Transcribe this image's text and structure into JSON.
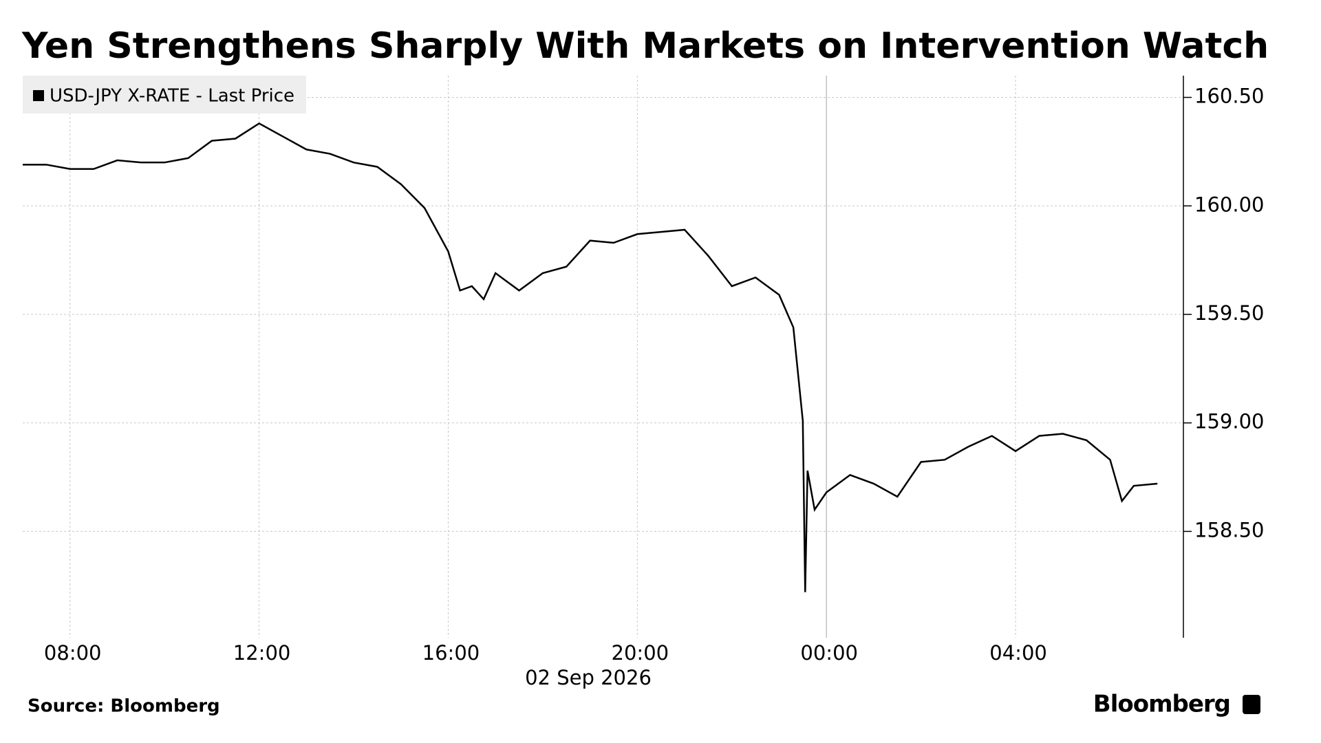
{
  "chart_data": {
    "type": "line",
    "title": "Yen Strengthens Sharply With Markets on Intervention Watch",
    "xlabel": "02 Sep 2026",
    "source": "Source: Bloomberg",
    "brand": "Bloomberg",
    "grid": true,
    "legend": "top-left",
    "x": [
      7,
      7.5,
      8,
      8.5,
      9,
      9.5,
      10,
      10.5,
      11,
      11.5,
      12,
      12.5,
      13,
      13.5,
      14,
      14.5,
      15,
      15.5,
      16,
      16.25,
      16.5,
      16.75,
      17,
      17.5,
      18,
      18.5,
      19,
      19.5,
      20,
      20.5,
      21,
      21.5,
      22,
      22.5,
      23,
      23.3,
      23.5,
      23.55,
      23.6,
      23.75,
      24,
      24.5,
      25,
      25.5,
      26,
      26.5,
      27,
      27.5,
      28,
      28.5,
      29,
      29.5,
      30,
      30.25,
      30.5,
      31
    ],
    "series": [
      {
        "name": "USD-JPY X-RATE - Last Price",
        "color": "#000000",
        "values": [
          160.19,
          160.19,
          160.17,
          160.17,
          160.21,
          160.2,
          160.2,
          160.22,
          160.3,
          160.31,
          160.38,
          160.32,
          160.26,
          160.24,
          160.2,
          160.18,
          160.1,
          159.99,
          159.79,
          159.61,
          159.63,
          159.57,
          159.69,
          159.61,
          159.69,
          159.72,
          159.84,
          159.83,
          159.87,
          159.88,
          159.89,
          159.77,
          159.63,
          159.67,
          159.59,
          159.44,
          159.01,
          158.22,
          158.78,
          158.6,
          158.68,
          158.76,
          158.72,
          158.66,
          158.82,
          158.83,
          158.89,
          158.94,
          158.87,
          158.94,
          158.95,
          158.92,
          158.83,
          158.64,
          158.71,
          158.72
        ]
      }
    ],
    "xlim": [
      7,
      31.55
    ],
    "xticks": [
      {
        "value": 8,
        "label": "08:00"
      },
      {
        "value": 12,
        "label": "12:00"
      },
      {
        "value": 16,
        "label": "16:00"
      },
      {
        "value": 20,
        "label": "20:00"
      },
      {
        "value": 24,
        "label": "00:00"
      },
      {
        "value": 28,
        "label": "04:00"
      }
    ],
    "ylim": [
      158.01,
      160.6
    ],
    "yticks": [
      {
        "value": 158.5,
        "label": "158.50"
      },
      {
        "value": 159,
        "label": "159.00"
      },
      {
        "value": 159.5,
        "label": "159.50"
      },
      {
        "value": 160,
        "label": "160.00"
      },
      {
        "value": 160.5,
        "label": "160.50"
      }
    ]
  }
}
